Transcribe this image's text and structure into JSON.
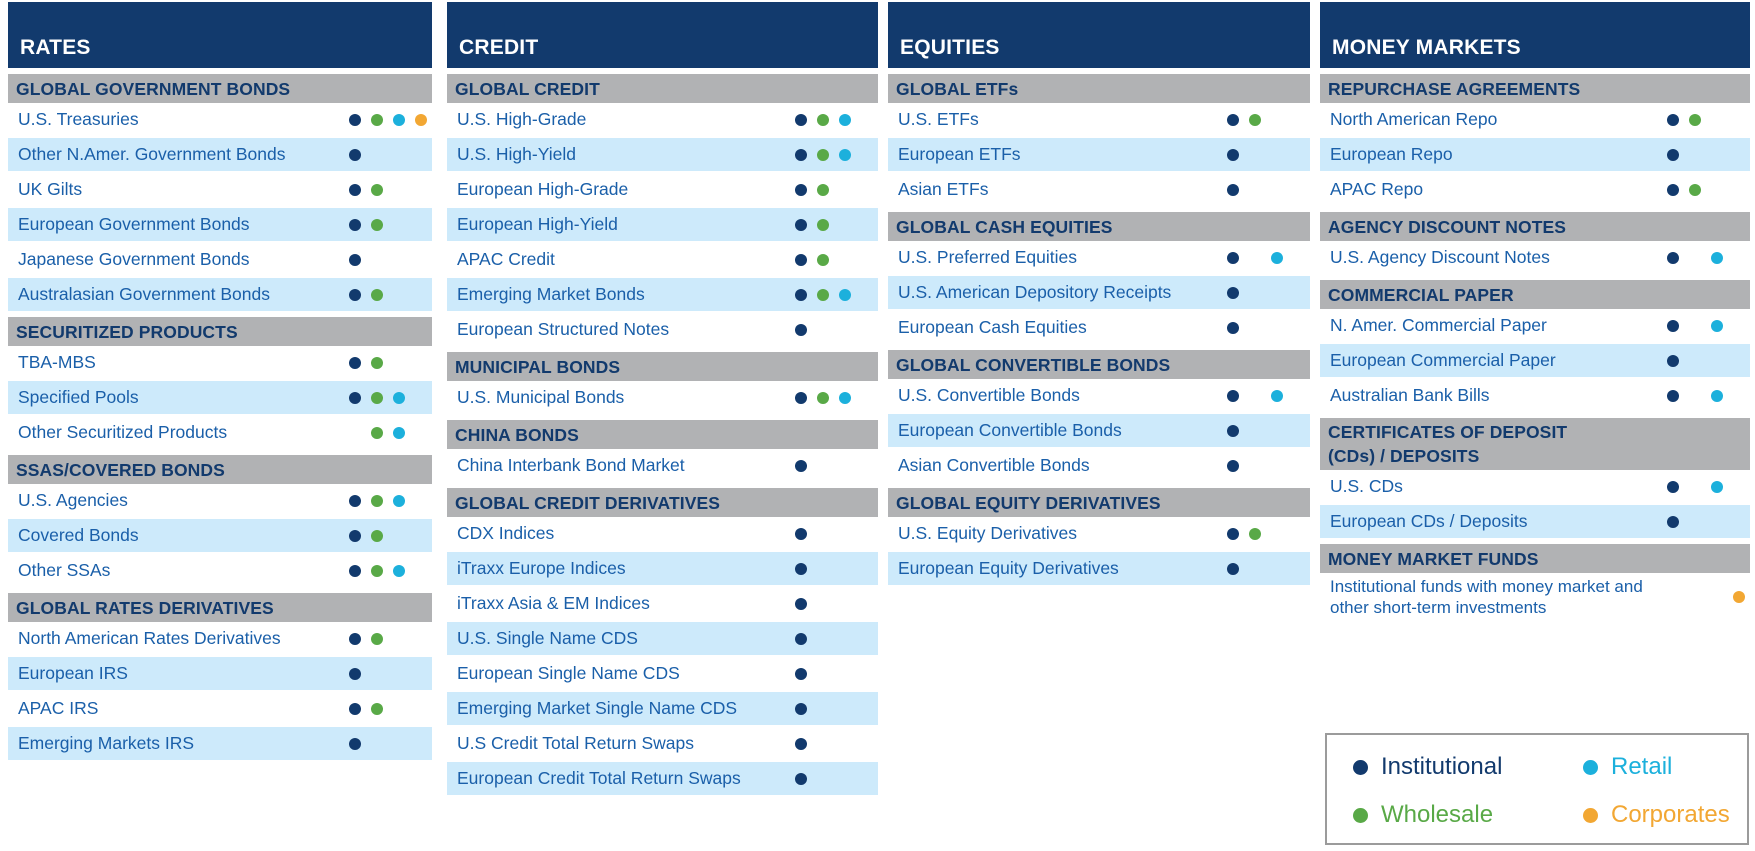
{
  "chart_data": {
    "type": "table",
    "description": "Product coverage matrix: markets vs client types",
    "client_keys": [
      "institutional",
      "wholesale",
      "retail",
      "corporates"
    ],
    "dot_colors": {
      "institutional": "#123a6d",
      "wholesale": "#59a947",
      "retail": "#1cb0dc",
      "corporates": "#f2a733"
    },
    "header_bg": "#123a6d",
    "section_bg": "#b1b2b4",
    "row_alt_bg": "#cdeafb",
    "row_text_color": "#1a5fa9",
    "legend_items": [
      {
        "key": "institutional",
        "label": "Institutional",
        "color": "#123a6d"
      },
      {
        "key": "retail",
        "label": "Retail",
        "color": "#1cb0dc"
      },
      {
        "key": "wholesale",
        "label": "Wholesale",
        "color": "#59a947"
      },
      {
        "key": "corporates",
        "label": "Corporates",
        "color": "#f2a733"
      }
    ],
    "columns": [
      {
        "title": "RATES",
        "sections": [
          {
            "header": "GLOBAL GOVERNMENT BONDS",
            "rows": [
              {
                "label": "U.S. Treasuries",
                "clients": [
                  "institutional",
                  "wholesale",
                  "retail",
                  "corporates"
                ]
              },
              {
                "label": "Other N.Amer. Government Bonds",
                "clients": [
                  "institutional"
                ]
              },
              {
                "label": "UK Gilts",
                "clients": [
                  "institutional",
                  "wholesale"
                ]
              },
              {
                "label": "European Government Bonds",
                "clients": [
                  "institutional",
                  "wholesale"
                ]
              },
              {
                "label": "Japanese Government Bonds",
                "clients": [
                  "institutional"
                ]
              },
              {
                "label": "Australasian Government Bonds",
                "clients": [
                  "institutional",
                  "wholesale"
                ]
              }
            ]
          },
          {
            "header": "SECURITIZED PRODUCTS",
            "rows": [
              {
                "label": "TBA-MBS",
                "clients": [
                  "institutional",
                  "wholesale"
                ]
              },
              {
                "label": "Specified Pools",
                "clients": [
                  "institutional",
                  "wholesale",
                  "retail"
                ]
              },
              {
                "label": "Other Securitized Products",
                "clients": [
                  "wholesale",
                  "retail"
                ]
              }
            ]
          },
          {
            "header": "SSAS/COVERED BONDS",
            "rows": [
              {
                "label": "U.S. Agencies",
                "clients": [
                  "institutional",
                  "wholesale",
                  "retail"
                ]
              },
              {
                "label": "Covered Bonds",
                "clients": [
                  "institutional",
                  "wholesale"
                ]
              },
              {
                "label": "Other SSAs",
                "clients": [
                  "institutional",
                  "wholesale",
                  "retail"
                ]
              }
            ]
          },
          {
            "header": "GLOBAL RATES DERIVATIVES",
            "rows": [
              {
                "label": "North American Rates Derivatives",
                "clients": [
                  "institutional",
                  "wholesale"
                ]
              },
              {
                "label": "European IRS",
                "clients": [
                  "institutional"
                ]
              },
              {
                "label": "APAC IRS",
                "clients": [
                  "institutional",
                  "wholesale"
                ]
              },
              {
                "label": "Emerging Markets IRS",
                "clients": [
                  "institutional"
                ]
              }
            ]
          }
        ]
      },
      {
        "title": "CREDIT",
        "sections": [
          {
            "header": "GLOBAL CREDIT",
            "rows": [
              {
                "label": "U.S. High-Grade",
                "clients": [
                  "institutional",
                  "wholesale",
                  "retail"
                ]
              },
              {
                "label": "U.S. High-Yield",
                "clients": [
                  "institutional",
                  "wholesale",
                  "retail"
                ]
              },
              {
                "label": "European High-Grade",
                "clients": [
                  "institutional",
                  "wholesale"
                ]
              },
              {
                "label": "European High-Yield",
                "clients": [
                  "institutional",
                  "wholesale"
                ]
              },
              {
                "label": "APAC Credit",
                "clients": [
                  "institutional",
                  "wholesale"
                ]
              },
              {
                "label": "Emerging Market Bonds",
                "clients": [
                  "institutional",
                  "wholesale",
                  "retail"
                ]
              },
              {
                "label": "European Structured Notes",
                "clients": [
                  "institutional"
                ]
              }
            ]
          },
          {
            "header": "MUNICIPAL BONDS",
            "rows": [
              {
                "label": "U.S. Municipal Bonds",
                "clients": [
                  "institutional",
                  "wholesale",
                  "retail"
                ]
              }
            ]
          },
          {
            "header": "CHINA BONDS",
            "rows": [
              {
                "label": "China Interbank Bond Market",
                "clients": [
                  "institutional"
                ]
              }
            ]
          },
          {
            "header": "GLOBAL CREDIT DERIVATIVES",
            "rows": [
              {
                "label": "CDX Indices",
                "clients": [
                  "institutional"
                ]
              },
              {
                "label": "iTraxx Europe Indices",
                "clients": [
                  "institutional"
                ]
              },
              {
                "label": "iTraxx Asia & EM Indices",
                "clients": [
                  "institutional"
                ]
              },
              {
                "label": "U.S. Single Name CDS",
                "clients": [
                  "institutional"
                ]
              },
              {
                "label": "European Single Name CDS",
                "clients": [
                  "institutional"
                ]
              },
              {
                "label": "Emerging Market Single Name CDS",
                "clients": [
                  "institutional"
                ]
              },
              {
                "label": "U.S Credit Total Return Swaps",
                "clients": [
                  "institutional"
                ]
              },
              {
                "label": "European Credit Total Return Swaps",
                "clients": [
                  "institutional"
                ]
              }
            ]
          }
        ]
      },
      {
        "title": "EQUITIES",
        "sections": [
          {
            "header": "GLOBAL ETFs",
            "rows": [
              {
                "label": "U.S. ETFs",
                "clients": [
                  "institutional",
                  "wholesale"
                ]
              },
              {
                "label": "European ETFs",
                "clients": [
                  "institutional"
                ]
              },
              {
                "label": "Asian ETFs",
                "clients": [
                  "institutional"
                ]
              }
            ]
          },
          {
            "header": "GLOBAL CASH EQUITIES",
            "rows": [
              {
                "label": "U.S. Preferred Equities",
                "clients": [
                  "institutional",
                  "retail"
                ]
              },
              {
                "label": "U.S. American Depository Receipts",
                "clients": [
                  "institutional"
                ]
              },
              {
                "label": "European Cash Equities",
                "clients": [
                  "institutional"
                ]
              }
            ]
          },
          {
            "header": "GLOBAL CONVERTIBLE BONDS",
            "rows": [
              {
                "label": "U.S. Convertible Bonds",
                "clients": [
                  "institutional",
                  "retail"
                ]
              },
              {
                "label": "European Convertible Bonds",
                "clients": [
                  "institutional"
                ]
              },
              {
                "label": "Asian Convertible Bonds",
                "clients": [
                  "institutional"
                ]
              }
            ]
          },
          {
            "header": "GLOBAL EQUITY DERIVATIVES",
            "rows": [
              {
                "label": "U.S. Equity Derivatives",
                "clients": [
                  "institutional",
                  "wholesale"
                ]
              },
              {
                "label": "European Equity Derivatives",
                "clients": [
                  "institutional"
                ]
              }
            ]
          }
        ]
      },
      {
        "title": "MONEY MARKETS",
        "sections": [
          {
            "header": "REPURCHASE AGREEMENTS",
            "rows": [
              {
                "label": "North American Repo",
                "clients": [
                  "institutional",
                  "wholesale"
                ]
              },
              {
                "label": "European Repo",
                "clients": [
                  "institutional"
                ]
              },
              {
                "label": "APAC Repo",
                "clients": [
                  "institutional",
                  "wholesale"
                ]
              }
            ]
          },
          {
            "header": "AGENCY DISCOUNT NOTES",
            "rows": [
              {
                "label": "U.S. Agency Discount Notes",
                "clients": [
                  "institutional",
                  "retail"
                ]
              }
            ]
          },
          {
            "header": "COMMERCIAL PAPER",
            "rows": [
              {
                "label": "N. Amer. Commercial Paper",
                "clients": [
                  "institutional",
                  "retail"
                ]
              },
              {
                "label": "European Commercial Paper",
                "clients": [
                  "institutional"
                ]
              },
              {
                "label": "Australian Bank Bills",
                "clients": [
                  "institutional",
                  "retail"
                ]
              }
            ]
          },
          {
            "header": [
              "CERTIFICATES OF DEPOSIT",
              "(CDs) / DEPOSITS"
            ],
            "rows": [
              {
                "label": "U.S. CDs",
                "clients": [
                  "institutional",
                  "retail"
                ]
              },
              {
                "label": "European CDs / Deposits",
                "clients": [
                  "institutional"
                ]
              }
            ]
          },
          {
            "header": "MONEY MARKET FUNDS",
            "rows": [
              {
                "label": "Institutional funds with money market and other short-term investments",
                "clients": [
                  "corporates"
                ],
                "note": true
              }
            ]
          }
        ]
      }
    ]
  }
}
